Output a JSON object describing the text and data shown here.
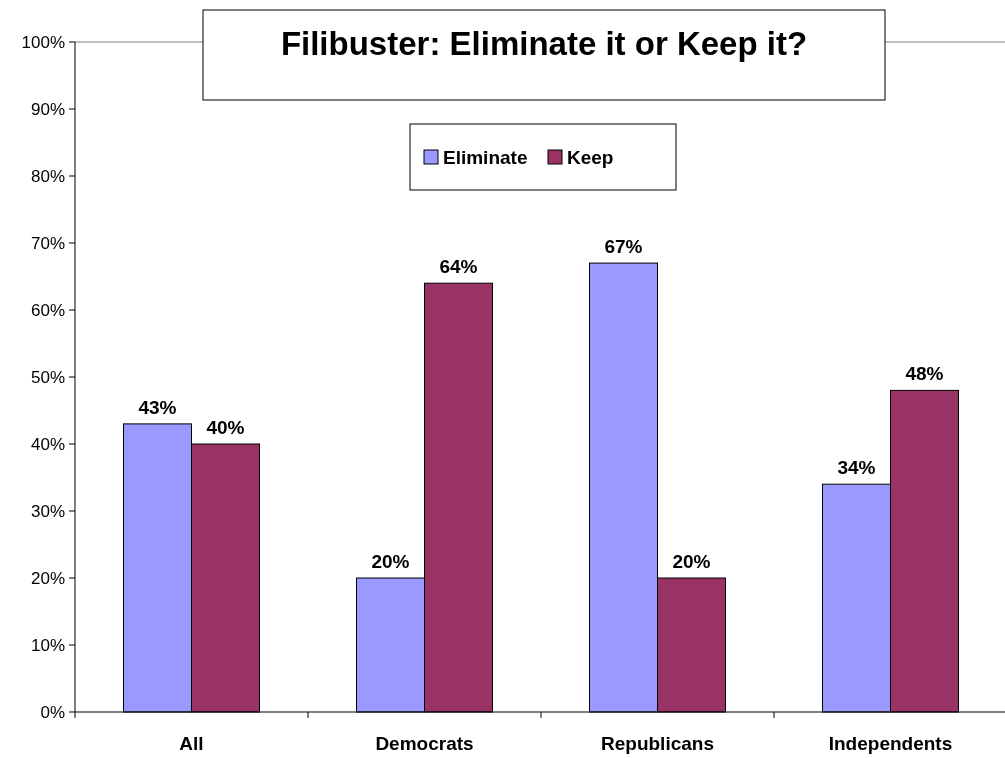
{
  "chart_data": {
    "type": "bar",
    "title": "Filibuster: Eliminate it or Keep it?",
    "categories": [
      "All",
      "Democrats",
      "Republicans",
      "Independents"
    ],
    "series": [
      {
        "name": "Eliminate",
        "color": "#9999ff",
        "values": [
          43,
          20,
          67,
          34
        ]
      },
      {
        "name": "Keep",
        "color": "#993366",
        "values": [
          40,
          64,
          20,
          48
        ]
      }
    ],
    "ylim": [
      0,
      100
    ],
    "yticks": [
      {
        "value": 0,
        "label": "0%"
      },
      {
        "value": 10,
        "label": "10%"
      },
      {
        "value": 20,
        "label": "20%"
      },
      {
        "value": 30,
        "label": "30%"
      },
      {
        "value": 40,
        "label": "40%"
      },
      {
        "value": 50,
        "label": "50%"
      },
      {
        "value": 60,
        "label": "60%"
      },
      {
        "value": 70,
        "label": "70%"
      },
      {
        "value": 80,
        "label": "80%"
      },
      {
        "value": 90,
        "label": "90%"
      },
      {
        "value": 100,
        "label": "100%"
      }
    ],
    "value_labels": [
      [
        "43%",
        "20%",
        "67%",
        "34%"
      ],
      [
        "40%",
        "64%",
        "20%",
        "48%"
      ]
    ],
    "legend": "top",
    "grid": false
  }
}
